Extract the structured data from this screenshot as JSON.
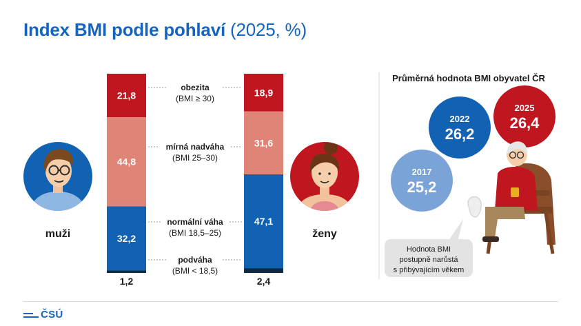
{
  "title": {
    "main": "Index BMI podle pohlaví",
    "suffix": "(2025, %)"
  },
  "colors": {
    "obezita": "#c0161f",
    "nadvaha": "#e08478",
    "normalni": "#1262b3",
    "podvaha": "#0e2a47",
    "bubble_2017": "#7aa3d8",
    "bubble_2022": "#1262b3",
    "bubble_2025": "#c0161f",
    "title": "#1565c0"
  },
  "chart_data": {
    "type": "bar",
    "stacked": true,
    "title": "Index BMI podle pohlaví (2025, %)",
    "categories": [
      "muži",
      "ženy"
    ],
    "series": [
      {
        "key": "podvaha",
        "name": "podváha",
        "range": "(BMI < 18,5)",
        "values": [
          1.2,
          2.4
        ],
        "labels": [
          "1,2",
          "2,4"
        ]
      },
      {
        "key": "normalni",
        "name": "normální váha",
        "range": "(BMI 18,5–25)",
        "values": [
          32.2,
          47.1
        ],
        "labels": [
          "32,2",
          "47,1"
        ]
      },
      {
        "key": "nadvaha",
        "name": "mírná nadváha",
        "range": "(BMI 25–30)",
        "values": [
          44.8,
          31.6
        ],
        "labels": [
          "44,8",
          "31,6"
        ]
      },
      {
        "key": "obezita",
        "name": "obezita",
        "range": "(BMI ≥ 30)",
        "values": [
          21.8,
          18.9
        ],
        "labels": [
          "21,8",
          "18,9"
        ]
      }
    ],
    "ylim": [
      0,
      100
    ],
    "average": {
      "title": "Průměrná hodnota BMI obyvatel ČR",
      "points": [
        {
          "year": "2017",
          "value": 25.2,
          "label": "25,2"
        },
        {
          "year": "2022",
          "value": 26.2,
          "label": "26,2"
        },
        {
          "year": "2025",
          "value": 26.4,
          "label": "26,4"
        }
      ]
    }
  },
  "genders": {
    "men": "muži",
    "women": "ženy"
  },
  "note": {
    "lines": [
      "Hodnota BMI",
      "postupně narůstá",
      "s přibývajícím věkem"
    ]
  },
  "footer": {
    "logo_text": "ČSÚ"
  }
}
